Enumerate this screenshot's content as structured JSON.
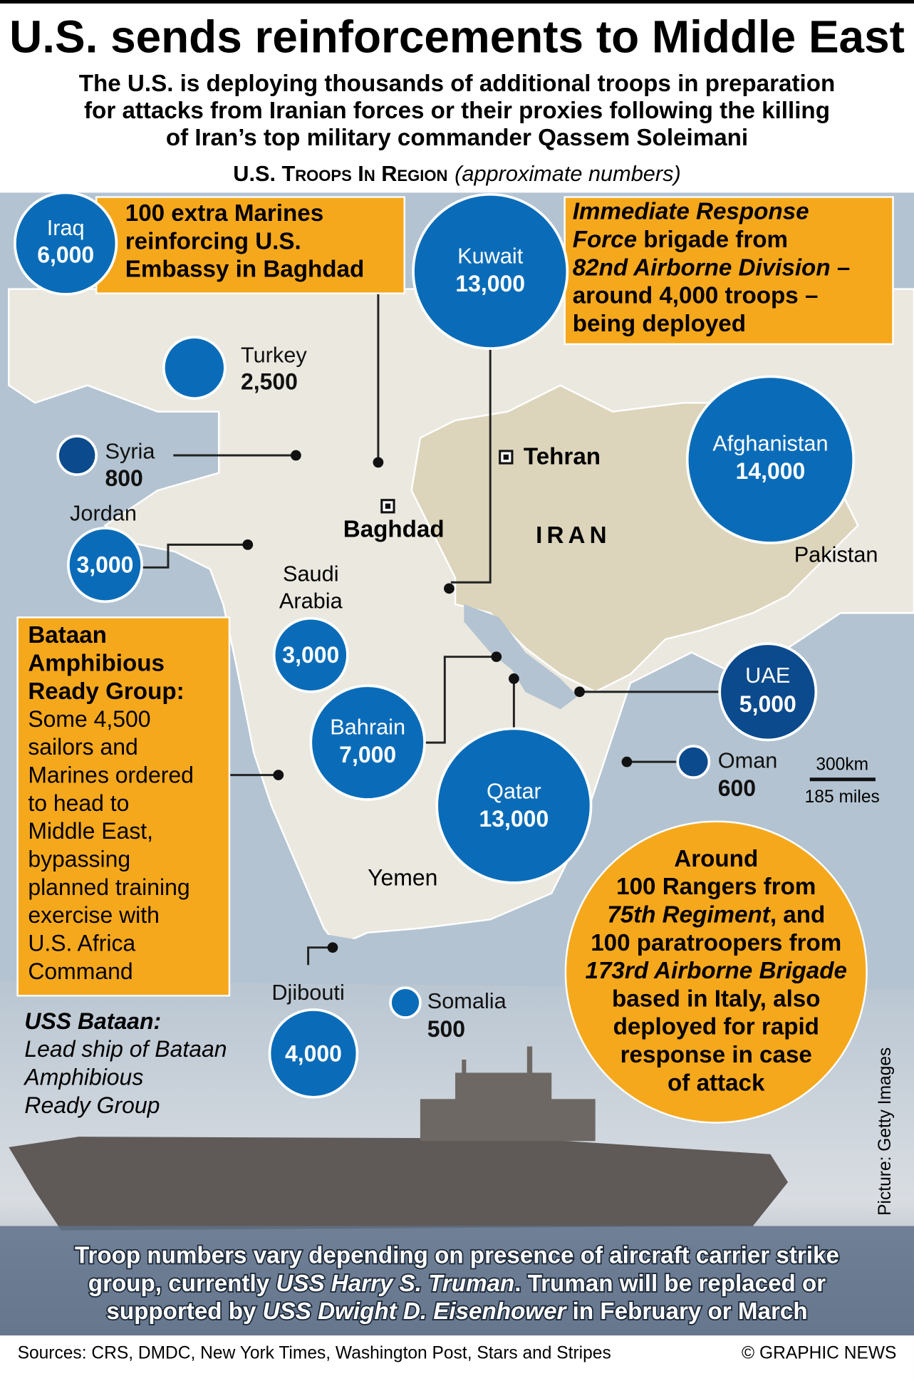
{
  "title": "U.S. sends reinforcements to Middle East",
  "subtitle": [
    "The U.S. is deploying thousands of additional troops in preparation",
    "for attacks from Iranian forces or their proxies following the killing",
    "of Iran’s top military commander Qassem Soleimani"
  ],
  "section": {
    "heading": "U.S. Troops In Region",
    "note": "(approximate numbers)"
  },
  "bubbles": [
    {
      "country": "Iraq",
      "troops": "6,000"
    },
    {
      "country": "Kuwait",
      "troops": "13,000"
    },
    {
      "country": "Turkey",
      "troops": "2,500"
    },
    {
      "country": "Syria",
      "troops": "800"
    },
    {
      "country": "Jordan",
      "troops": "3,000"
    },
    {
      "country": "Saudi Arabia",
      "troops": "3,000"
    },
    {
      "country": "Bahrain",
      "troops": "7,000"
    },
    {
      "country": "Qatar",
      "troops": "13,000"
    },
    {
      "country": "Afghanistan",
      "troops": "14,000"
    },
    {
      "country": "UAE",
      "troops": "5,000"
    },
    {
      "country": "Oman",
      "troops": "600"
    },
    {
      "country": "Djibouti",
      "troops": "4,000"
    },
    {
      "country": "Somalia",
      "troops": "500"
    }
  ],
  "places": [
    "Tehran",
    "Baghdad",
    "IRAN",
    "Pakistan",
    "Yemen"
  ],
  "scale": {
    "km": "300km",
    "miles": "185 miles"
  },
  "callouts": [
    {
      "lines": [
        [
          {
            "text": "100 extra Marines"
          }
        ],
        [
          {
            "text": "reinforcing U.S."
          }
        ],
        [
          {
            "text": "Embassy in Baghdad"
          }
        ]
      ]
    },
    {
      "lines": [
        [
          {
            "text": "Immediate Response",
            "italic": true
          }
        ],
        [
          {
            "text": "Force",
            "italic": true
          },
          {
            "text": " brigade from"
          }
        ],
        [
          {
            "text": "82nd Airborne Division",
            "italic": true
          },
          {
            "text": " –"
          }
        ],
        [
          {
            "text": "around 4,000 troops –"
          }
        ],
        [
          {
            "text": "being deployed"
          }
        ]
      ]
    },
    {
      "lines": [
        [
          {
            "text": "Around"
          }
        ],
        [
          {
            "text": "100 Rangers from"
          }
        ],
        [
          {
            "text": "75th Regiment",
            "italic": true
          },
          {
            "text": ", and"
          }
        ],
        [
          {
            "text": "100 paratroopers from"
          }
        ],
        [
          {
            "text": "173rd Airborne Brigade",
            "italic": true
          }
        ],
        [
          {
            "text": "based in Italy, also"
          }
        ],
        [
          {
            "text": "deployed for rapid"
          }
        ],
        [
          {
            "text": "response in case"
          }
        ],
        [
          {
            "text": "of attack"
          }
        ]
      ]
    }
  ],
  "bataan": {
    "heading": [
      "Bataan",
      "Amphibious",
      "Ready Group:"
    ],
    "body": [
      "Some 4,500",
      "sailors and",
      "Marines ordered",
      "to head to",
      "Middle East,",
      "bypassing",
      "planned training",
      "exercise with",
      "U.S. Africa",
      "Command"
    ]
  },
  "ship_caption": {
    "title": "USS Bataan:",
    "lines": [
      "Lead ship of Bataan",
      "Amphibious",
      "Ready Group"
    ]
  },
  "footnote": [
    [
      {
        "text": "Troop numbers vary depending on presence of aircraft carrier strike"
      }
    ],
    [
      {
        "text": "group, currently "
      },
      {
        "text": "USS Harry S. Truman",
        "italic": true
      },
      {
        "text": ". Truman will be replaced or"
      }
    ],
    [
      {
        "text": "supported by "
      },
      {
        "text": "USS Dwight D. Eisenhower",
        "italic": true
      },
      {
        "text": " in February or March"
      }
    ]
  ],
  "photo_credit": "Picture: Getty Images",
  "sources": "Sources: CRS, DMDC, New York Times, Washington Post, Stars and Stripes",
  "credit": "© GRAPHIC NEWS"
}
